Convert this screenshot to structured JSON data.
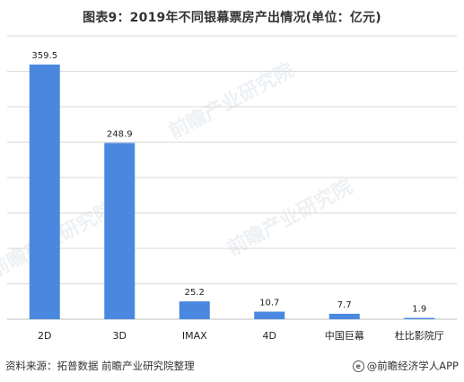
{
  "title": "图表9：2019年不同银幕票房产出情况(单位：亿元)",
  "watermark_text": "前瞻产业研究院",
  "footer": {
    "source": "资料来源：拓普数据 前瞻产业研究院整理",
    "brand": "@前瞻经济学人APP"
  },
  "chart_data": {
    "type": "bar",
    "title": "图表9：2019年不同银幕票房产出情况(单位：亿元)",
    "categories": [
      "2D",
      "3D",
      "IMAX",
      "4D",
      "中国巨幕",
      "杜比影院厅"
    ],
    "values": [
      359.5,
      248.9,
      25.2,
      10.7,
      7.7,
      1.9
    ],
    "value_labels": [
      "359.5",
      "248.9",
      "25.2",
      "10.7",
      "7.7",
      "1.9"
    ],
    "ylim": [
      0,
      400
    ],
    "grid": true,
    "bar_color": "#4a88e0",
    "legend": false
  }
}
